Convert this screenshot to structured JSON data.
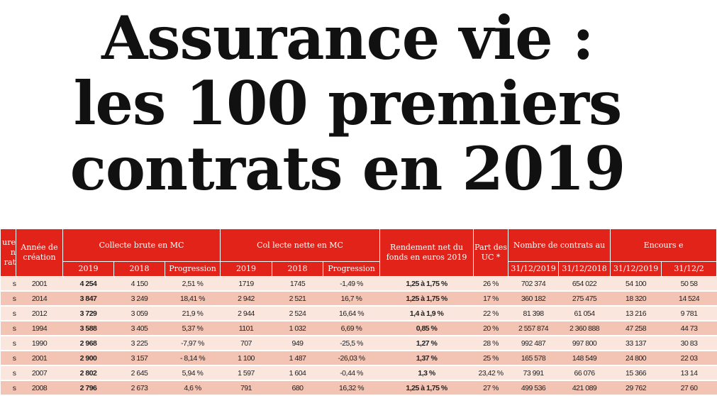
{
  "title": [
    "Assurance vie :",
    "les 100 premiers",
    "contrats en 2019"
  ],
  "table": {
    "headers": {
      "first": "ure n rat",
      "annee": "Année de création",
      "collecte_brute": "Collecte brute en MC",
      "collecte_nette": "Col lecte nette en MC",
      "rendement": "Rendement net du fonds en euros 2019",
      "part_uc": "Part des UC *",
      "nombre_contrats": "Nombre de contrats au",
      "encours": "Encours e",
      "sub": {
        "y2019": "2019",
        "y2018": "2018",
        "progression": "Progression",
        "d2019": "31/12/2019",
        "d2018": "31/12/2018",
        "e2019": "31/12/2019",
        "e2018": "31/12/2"
      }
    },
    "rows": [
      [
        "s",
        "2001",
        "4 254",
        "4 150",
        "2,51 %",
        "1719",
        "1745",
        "-1,49 %",
        "1,25 à 1,75 %",
        "26 %",
        "702 374",
        "654 022",
        "54 100",
        "50 58"
      ],
      [
        "s",
        "2014",
        "3 847",
        "3 249",
        "18,41 %",
        "2 942",
        "2 521",
        "16,7 %",
        "1,25 à 1,75 %",
        "17 %",
        "360 182",
        "275 475",
        "18 320",
        "14 524"
      ],
      [
        "s",
        "2012",
        "3 729",
        "3 059",
        "21,9 %",
        "2 944",
        "2 524",
        "16,64 %",
        "1,4 à 1,9 %",
        "22 %",
        "81 398",
        "61 054",
        "13 216",
        "9 781"
      ],
      [
        "s",
        "1994",
        "3 588",
        "3 405",
        "5,37 %",
        "1101",
        "1 032",
        "6,69 %",
        "0,85 %",
        "20 %",
        "2 557 874",
        "2 360 888",
        "47 258",
        "44 73"
      ],
      [
        "s",
        "1990",
        "2 968",
        "3 225",
        "-7,97 %",
        "707",
        "949",
        "-25,5 %",
        "1,27 %",
        "28 %",
        "992 487",
        "997 800",
        "33 137",
        "30 83"
      ],
      [
        "s",
        "2001",
        "2 900",
        "3 157",
        "- 8,14 %",
        "1 100",
        "1 487",
        "-26,03 %",
        "1,37 %",
        "25 %",
        "165 578",
        "148 549",
        "24 800",
        "22 03"
      ],
      [
        "s",
        "2007",
        "2 802",
        "2 645",
        "5,94 %",
        "1 597",
        "1 604",
        "-0,44 %",
        "1,3 %",
        "23,42 %",
        "73 991",
        "66 076",
        "15 366",
        "13 14"
      ],
      [
        "s",
        "2008",
        "2 796",
        "2 673",
        "4,6 %",
        "791",
        "680",
        "16,32 %",
        "1,25 à 1,75 %",
        "27 %",
        "499 536",
        "421 089",
        "29 762",
        "27 60"
      ]
    ]
  }
}
